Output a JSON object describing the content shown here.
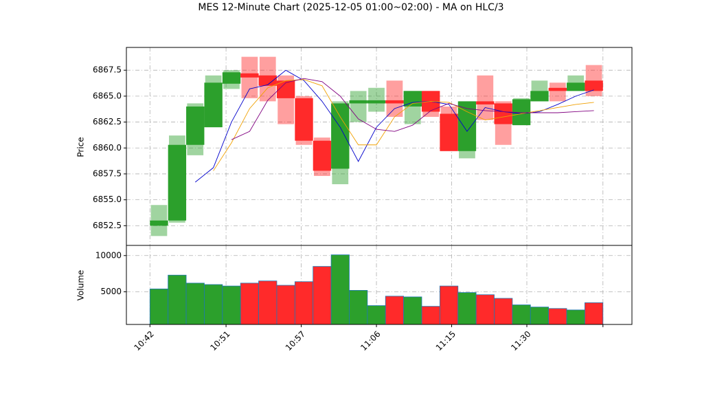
{
  "chart_data": {
    "type": "candlestick",
    "title": "MES 12-Minute Chart (2025-12-05 01:00~02:00) - MA on HLC/3",
    "ylabel": "Price",
    "volume_label": "Volume",
    "open": [
      6852.5,
      6853,
      6860.3,
      6862,
      6866.2,
      6867.2,
      6867,
      6866.5,
      6864.8,
      6860.7,
      6858,
      6864.3,
      6864.3,
      6864.6,
      6864,
      6865.5,
      6863.3,
      6859.7,
      6864.5,
      6864.3,
      6862.2,
      6864.5,
      6865.8,
      6865.5,
      6866.5
    ],
    "high": [
      6854.5,
      6861.2,
      6864.3,
      6867,
      6867.5,
      6868.8,
      6868.8,
      6867,
      6865,
      6861,
      6864.5,
      6865.5,
      6865.8,
      6866.5,
      6865.5,
      6865.5,
      6864,
      6864.5,
      6867,
      6864.5,
      6864.8,
      6866.5,
      6866.3,
      6867,
      6868
    ],
    "low": [
      6851.5,
      6852.8,
      6859.3,
      6862,
      6865.7,
      6864.8,
      6864.5,
      6862.3,
      6860.3,
      6857.3,
      6856.5,
      6862.5,
      6863.5,
      6863,
      6862.3,
      6863,
      6859.7,
      6859,
      6862.7,
      6860.3,
      6862.2,
      6864.5,
      6864.5,
      6865.5,
      6865
    ],
    "close": [
      6853,
      6860.3,
      6864,
      6866.3,
      6867.3,
      6866.8,
      6866,
      6864.8,
      6860.7,
      6857.8,
      6864.3,
      6864.6,
      6864.6,
      6864.3,
      6865.5,
      6863.5,
      6859.7,
      6864.5,
      6864.2,
      6862.3,
      6864.7,
      6865.5,
      6865.5,
      6866.3,
      6865.5
    ],
    "volume": [
      5400,
      7300,
      6200,
      6000,
      5800,
      6200,
      6500,
      5900,
      6400,
      8500,
      10100,
      5200,
      3100,
      4400,
      4300,
      3000,
      5800,
      4900,
      4600,
      4100,
      3200,
      2900,
      2700,
      2500,
      3500
    ],
    "up_color": "#2ca02c",
    "down_color": "#ff2a2a",
    "volume_edge_color": "#1f77b4",
    "ma_lines": [
      {
        "color": "#0000cc",
        "values": [
          null,
          null,
          6856.7,
          6858.1,
          6862.5,
          6865.7,
          6866.1,
          6867.5,
          6866.5,
          6864.5,
          6862,
          6858.7,
          6862,
          6863.8,
          6864.4,
          6864.5,
          6864.2,
          6861.6,
          6863.9,
          6863.5,
          6863.3,
          6863.5,
          6864.2,
          6865,
          6865.6
        ]
      },
      {
        "color": "#f0a000",
        "values": [
          null,
          null,
          null,
          6857.8,
          6860.5,
          6863.8,
          6865.8,
          6866.5,
          6866.6,
          6866,
          6863,
          6860.3,
          6860.3,
          6863,
          6864.3,
          6864.5,
          6864.4,
          6863.5,
          6862.7,
          6863,
          6863.3,
          6863.6,
          6863.9,
          6864.2,
          6864.4
        ]
      },
      {
        "color": "#800080",
        "values": [
          null,
          null,
          null,
          null,
          6860.8,
          6861.6,
          6864.6,
          6866.3,
          6866.7,
          6866.4,
          6865,
          6862.8,
          6861.8,
          6861.6,
          6862.2,
          6863.6,
          6864.3,
          6863.8,
          6863.6,
          6863.5,
          6863.4,
          6863.4,
          6863.4,
          6863.5,
          6863.6
        ]
      }
    ],
    "xlim": [
      -1.8,
      26.1
    ],
    "xticks": [
      {
        "value": -0.5,
        "label": "10:42"
      },
      {
        "value": 3.7,
        "label": "10:51"
      },
      {
        "value": 7.85,
        "label": "10:57"
      },
      {
        "value": 12,
        "label": "11:06"
      },
      {
        "value": 16.15,
        "label": "11:15"
      },
      {
        "value": 20.3,
        "label": "11:30"
      },
      {
        "value": 24.5,
        "label": null
      }
    ],
    "ylim": [
      6850.6,
      6869.7
    ],
    "yticks": [
      {
        "value": 6852.5,
        "label": "6852.5"
      },
      {
        "value": 6855,
        "label": "6855.0"
      },
      {
        "value": 6857.5,
        "label": "6857.5"
      },
      {
        "value": 6860,
        "label": "6860.0"
      },
      {
        "value": 6862.5,
        "label": "6862.5"
      },
      {
        "value": 6865,
        "label": "6865.0"
      },
      {
        "value": 6867.5,
        "label": "6867.5"
      }
    ],
    "vlim": [
      500,
      11400
    ],
    "vticks": [
      5000,
      10000
    ],
    "grid": true
  }
}
